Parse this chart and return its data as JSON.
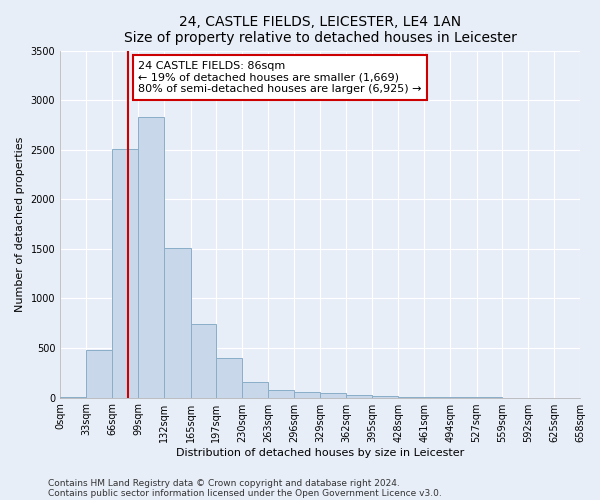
{
  "title": "24, CASTLE FIELDS, LEICESTER, LE4 1AN",
  "subtitle": "Size of property relative to detached houses in Leicester",
  "xlabel": "Distribution of detached houses by size in Leicester",
  "ylabel": "Number of detached properties",
  "bar_values": [
    10,
    480,
    2510,
    2830,
    1510,
    740,
    400,
    155,
    80,
    55,
    45,
    30,
    20,
    10,
    5,
    5,
    5,
    0,
    0,
    0
  ],
  "bin_edges": [
    0,
    33,
    66,
    99,
    132,
    165,
    197,
    230,
    263,
    296,
    329,
    362,
    395,
    428,
    461,
    494,
    527,
    559,
    592,
    625,
    658
  ],
  "bin_labels": [
    "0sqm",
    "33sqm",
    "66sqm",
    "99sqm",
    "132sqm",
    "165sqm",
    "197sqm",
    "230sqm",
    "263sqm",
    "296sqm",
    "329sqm",
    "362sqm",
    "395sqm",
    "428sqm",
    "461sqm",
    "494sqm",
    "527sqm",
    "559sqm",
    "592sqm",
    "625sqm",
    "658sqm"
  ],
  "bar_color": "#c8d8ea",
  "bar_edge_color": "#8aaec8",
  "vline_x": 86,
  "vline_color": "#cc0000",
  "ylim": [
    0,
    3500
  ],
  "yticks": [
    0,
    500,
    1000,
    1500,
    2000,
    2500,
    3000,
    3500
  ],
  "annotation_text": "24 CASTLE FIELDS: 86sqm\n← 19% of detached houses are smaller (1,669)\n80% of semi-detached houses are larger (6,925) →",
  "annotation_box_color": "#ffffff",
  "annotation_box_edge_color": "#cc0000",
  "footnote1": "Contains HM Land Registry data © Crown copyright and database right 2024.",
  "footnote2": "Contains public sector information licensed under the Open Government Licence v3.0.",
  "background_color": "#e8eef8",
  "plot_background_color": "#e8eef8",
  "grid_color": "#ffffff",
  "title_fontsize": 10,
  "xlabel_fontsize": 8,
  "ylabel_fontsize": 8,
  "tick_fontsize": 7,
  "annot_fontsize": 8,
  "footnote_fontsize": 6.5
}
